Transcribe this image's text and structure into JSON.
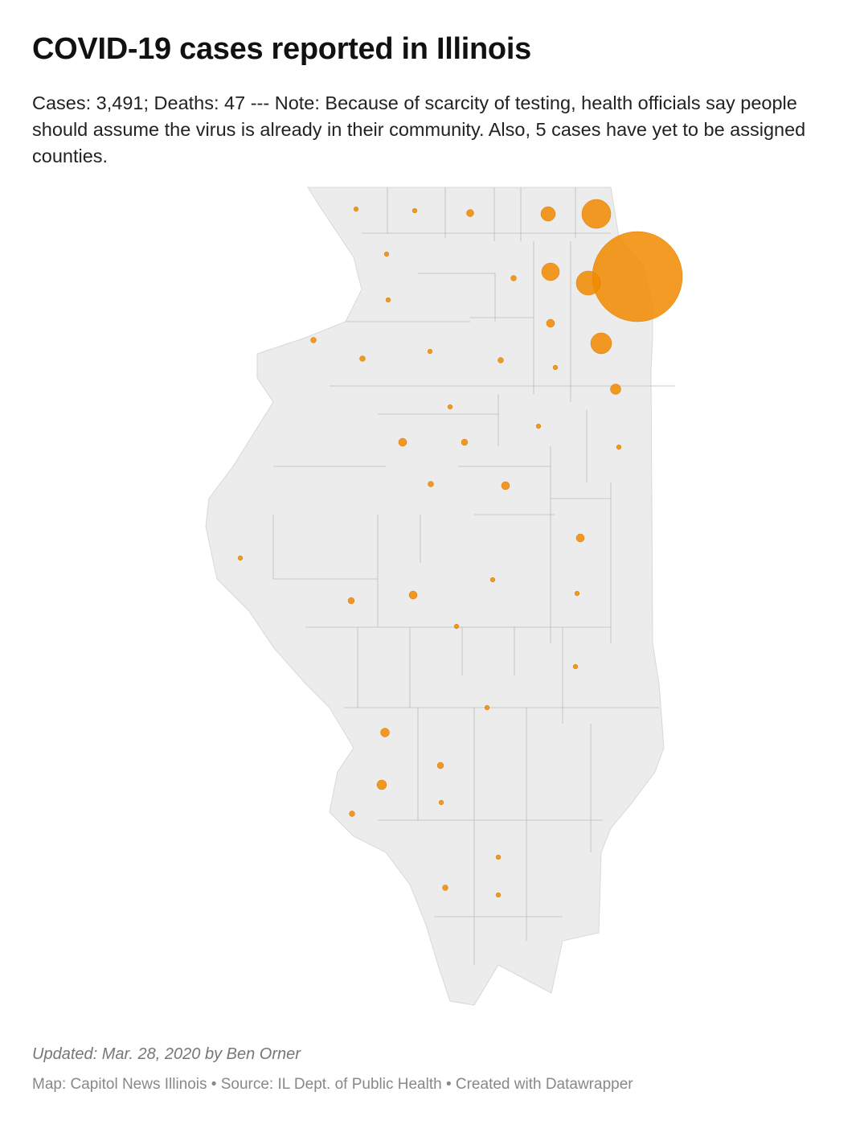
{
  "header": {
    "title": "COVID-19 cases reported in Illinois",
    "subtitle": "Cases: 3,491; Deaths: 47 --- Note: Because of scarcity of testing, health officials say people should assume the virus is already in their community. Also, 5 cases have yet to be assigned counties."
  },
  "map": {
    "bubble_color": "#f28a00",
    "values": [
      7,
      7,
      17,
      67,
      269,
      2600,
      7,
      10,
      100,
      187,
      7,
      10,
      10,
      7,
      10,
      21,
      140,
      7,
      35,
      7,
      7,
      21,
      13,
      7,
      10,
      21,
      21,
      7,
      7,
      13,
      21,
      7,
      7,
      7,
      7,
      25,
      13,
      30,
      7,
      10,
      7,
      10,
      7
    ]
  },
  "footer": {
    "byline": "Updated: Mar. 28, 2020 by Ben Orner",
    "source": "Map: Capitol News Illinois • Source: IL Dept. of Public Health • Created with Datawrapper"
  }
}
